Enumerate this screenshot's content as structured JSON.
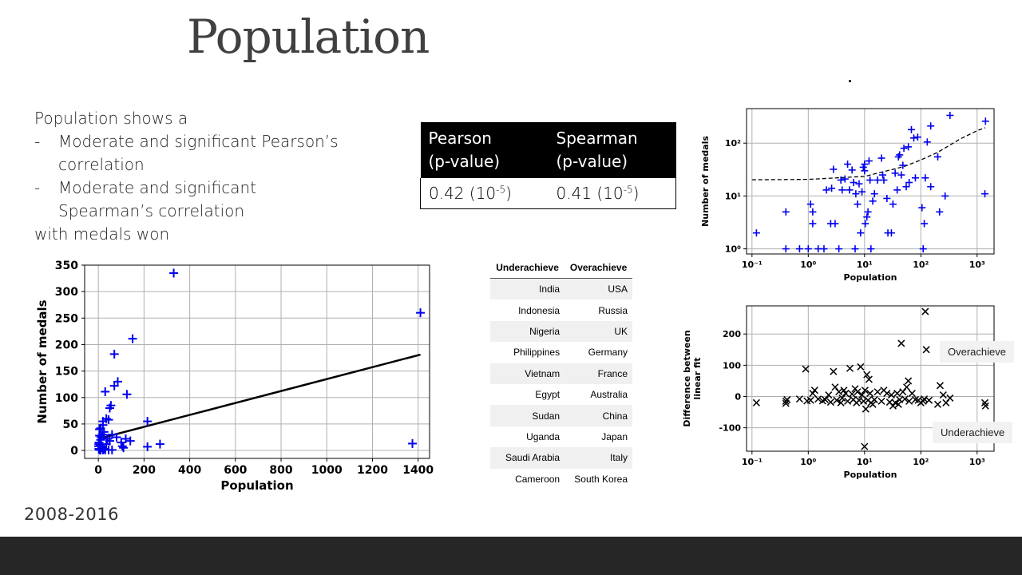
{
  "title": "Population",
  "bullets": {
    "intro": "Population shows a",
    "items": [
      {
        "line1": "Moderate and significant Pearson’s",
        "line2": "correlation"
      },
      {
        "line1": "Moderate and significant",
        "line2": "Spearman’s correlation"
      }
    ],
    "outro": "with medals won",
    "dash": "-"
  },
  "stats_table": {
    "headers": [
      [
        "Pearson",
        "(p-value)"
      ],
      [
        "Spearman",
        "(p-value)"
      ]
    ],
    "values": [
      "0.42 (10",
      "0.41 (10"
    ],
    "exponent": "-5",
    "close": ")"
  },
  "achieve_table": {
    "headers": [
      "Underachieve",
      "Overachieve"
    ],
    "rows": [
      [
        "India",
        "USA"
      ],
      [
        "Indonesia",
        "Russia"
      ],
      [
        "Nigeria",
        "UK"
      ],
      [
        "Philippines",
        "Germany"
      ],
      [
        "Vietnam",
        "France"
      ],
      [
        "Egypt",
        "Australia"
      ],
      [
        "Sudan",
        "China"
      ],
      [
        "Uganda",
        "Japan"
      ],
      [
        "Saudi Arabia",
        "Italy"
      ],
      [
        "Cameroon",
        "South Korea"
      ]
    ]
  },
  "tags": {
    "over": "Overachieve",
    "under": "Underachieve"
  },
  "year_range": "2008-2016",
  "colors": {
    "marker": "#0000ee",
    "title": "#404040",
    "footer": "#262626"
  },
  "chart_data": [
    {
      "type": "scatter",
      "xlabel": "Population",
      "ylabel": "Number of medals",
      "xlim": [
        -60,
        1450
      ],
      "ylim": [
        -15,
        350
      ],
      "xticks": [
        0,
        200,
        400,
        600,
        800,
        1000,
        1200,
        1400
      ],
      "yticks": [
        0,
        50,
        100,
        150,
        200,
        250,
        300,
        350
      ],
      "grid": true,
      "marker": "+",
      "points": [
        [
          330,
          335
        ],
        [
          1410,
          260
        ],
        [
          150,
          211
        ],
        [
          70,
          182
        ],
        [
          1375,
          13
        ],
        [
          270,
          12
        ],
        [
          215,
          55
        ],
        [
          215,
          7
        ],
        [
          85,
          130
        ],
        [
          70,
          122
        ],
        [
          30,
          111
        ],
        [
          125,
          106
        ],
        [
          55,
          85
        ],
        [
          50,
          80
        ],
        [
          35,
          60
        ],
        [
          45,
          58
        ],
        [
          20,
          55
        ],
        [
          20,
          48
        ],
        [
          10,
          42
        ],
        [
          5,
          40
        ],
        [
          25,
          35
        ],
        [
          60,
          30
        ],
        [
          80,
          25
        ],
        [
          120,
          22
        ],
        [
          140,
          18
        ],
        [
          100,
          15
        ],
        [
          105,
          8
        ],
        [
          110,
          5
        ],
        [
          5,
          28
        ],
        [
          10,
          20
        ],
        [
          3,
          15
        ],
        [
          8,
          10
        ],
        [
          12,
          25
        ],
        [
          18,
          30
        ],
        [
          40,
          22
        ],
        [
          15,
          5
        ],
        [
          2,
          3
        ],
        [
          25,
          3
        ],
        [
          35,
          12
        ],
        [
          50,
          18
        ],
        [
          5,
          1
        ],
        [
          10,
          1
        ],
        [
          20,
          1
        ],
        [
          30,
          1
        ],
        [
          45,
          1
        ],
        [
          60,
          1
        ],
        [
          1,
          8
        ],
        [
          2,
          12
        ]
      ],
      "fit_line": {
        "x": [
          0,
          1410
        ],
        "y": [
          22,
          181
        ]
      }
    },
    {
      "type": "scatter",
      "xlabel": "Population",
      "ylabel": "Number of medals",
      "xscale": "log",
      "yscale": "log",
      "xlim": [
        0.08,
        2000
      ],
      "ylim": [
        0.8,
        450
      ],
      "xticks": [
        "10⁻¹",
        "10⁰",
        "10¹",
        "10²",
        "10³"
      ],
      "yticks": [
        "10⁰",
        "10¹",
        "10²"
      ],
      "grid": true,
      "marker": "+",
      "points": [
        [
          0.12,
          2
        ],
        [
          0.4,
          1
        ],
        [
          0.4,
          5
        ],
        [
          0.7,
          1
        ],
        [
          1,
          1
        ],
        [
          1.1,
          7
        ],
        [
          1.2,
          5
        ],
        [
          1.2,
          3
        ],
        [
          1.5,
          1
        ],
        [
          1.9,
          1
        ],
        [
          2.1,
          13
        ],
        [
          2.5,
          3
        ],
        [
          2.6,
          14
        ],
        [
          2.8,
          32
        ],
        [
          3,
          3
        ],
        [
          3.5,
          1
        ],
        [
          3.8,
          20
        ],
        [
          4,
          13
        ],
        [
          4.5,
          21
        ],
        [
          5,
          40
        ],
        [
          5.4,
          13
        ],
        [
          6,
          31
        ],
        [
          6.4,
          18
        ],
        [
          6.8,
          1
        ],
        [
          7,
          11
        ],
        [
          7.5,
          7
        ],
        [
          8,
          17
        ],
        [
          8.5,
          2
        ],
        [
          9,
          12
        ],
        [
          9.5,
          35
        ],
        [
          10,
          40
        ],
        [
          10,
          30
        ],
        [
          10.3,
          3
        ],
        [
          11,
          4
        ],
        [
          11.5,
          5
        ],
        [
          12,
          46
        ],
        [
          12.5,
          20
        ],
        [
          13,
          1
        ],
        [
          14,
          8
        ],
        [
          15,
          11
        ],
        [
          17,
          20
        ],
        [
          20,
          52
        ],
        [
          21,
          25
        ],
        [
          22,
          20
        ],
        [
          25,
          9
        ],
        [
          26,
          2
        ],
        [
          30,
          2
        ],
        [
          32,
          7
        ],
        [
          35,
          27
        ],
        [
          38,
          13
        ],
        [
          40,
          55
        ],
        [
          42,
          60
        ],
        [
          45,
          25
        ],
        [
          48,
          38
        ],
        [
          50,
          80
        ],
        [
          55,
          15
        ],
        [
          60,
          85
        ],
        [
          62,
          18
        ],
        [
          68,
          180
        ],
        [
          75,
          125
        ],
        [
          80,
          22
        ],
        [
          88,
          130
        ],
        [
          105,
          6
        ],
        [
          110,
          1
        ],
        [
          115,
          3
        ],
        [
          120,
          22
        ],
        [
          130,
          105
        ],
        [
          150,
          211
        ],
        [
          150,
          15
        ],
        [
          200,
          55
        ],
        [
          215,
          5
        ],
        [
          270,
          10
        ],
        [
          330,
          335
        ],
        [
          1375,
          11
        ],
        [
          1410,
          260
        ]
      ],
      "fit_curve": {
        "x": [
          0.1,
          1,
          10,
          50,
          100,
          200,
          500,
          1000,
          1400
        ],
        "y": [
          20.3,
          20.6,
          23.5,
          36,
          48,
          67,
          120,
          172,
          196
        ]
      }
    },
    {
      "type": "scatter",
      "xlabel": "Population",
      "ylabel": "Difference between linear fit",
      "xscale": "log",
      "xlim": [
        0.08,
        2000
      ],
      "ylim": [
        -175,
        290
      ],
      "xticks": [
        "10⁻¹",
        "10⁰",
        "10¹",
        "10²",
        "10³"
      ],
      "yticks": [
        200,
        100,
        0,
        -100
      ],
      "grid": true,
      "marker": "x",
      "points": [
        [
          0.12,
          -20
        ],
        [
          0.4,
          -15
        ],
        [
          0.4,
          -22
        ],
        [
          0.42,
          -10
        ],
        [
          0.7,
          -8
        ],
        [
          0.9,
          88
        ],
        [
          0.95,
          -14
        ],
        [
          1.1,
          -12
        ],
        [
          1.2,
          10
        ],
        [
          1.3,
          20
        ],
        [
          1.5,
          -8
        ],
        [
          1.8,
          -14
        ],
        [
          2,
          -10
        ],
        [
          2.3,
          5
        ],
        [
          2.5,
          -18
        ],
        [
          2.8,
          80
        ],
        [
          3,
          30
        ],
        [
          3.2,
          -12
        ],
        [
          3.5,
          15
        ],
        [
          3.8,
          -20
        ],
        [
          4,
          -5
        ],
        [
          4.3,
          20
        ],
        [
          4.6,
          10
        ],
        [
          5,
          -15
        ],
        [
          5.5,
          90
        ],
        [
          6,
          8
        ],
        [
          6.3,
          -10
        ],
        [
          6.8,
          25
        ],
        [
          7.2,
          -20
        ],
        [
          7.5,
          15
        ],
        [
          8,
          -12
        ],
        [
          8.5,
          95
        ],
        [
          9,
          5
        ],
        [
          9.6,
          -15
        ],
        [
          10,
          -160
        ],
        [
          10.2,
          20
        ],
        [
          10.5,
          -40
        ],
        [
          11,
          70
        ],
        [
          11.5,
          -12
        ],
        [
          12,
          55
        ],
        [
          12.5,
          10
        ],
        [
          13,
          -20
        ],
        [
          14,
          -25
        ],
        [
          15,
          -10
        ],
        [
          17,
          15
        ],
        [
          20,
          -15
        ],
        [
          22,
          20
        ],
        [
          25,
          10
        ],
        [
          28,
          -18
        ],
        [
          30,
          5
        ],
        [
          32,
          -30
        ],
        [
          35,
          -20
        ],
        [
          38,
          10
        ],
        [
          40,
          -25
        ],
        [
          42,
          -10
        ],
        [
          45,
          170
        ],
        [
          48,
          15
        ],
        [
          52,
          -8
        ],
        [
          56,
          30
        ],
        [
          60,
          50
        ],
        [
          62,
          -15
        ],
        [
          70,
          10
        ],
        [
          80,
          -10
        ],
        [
          90,
          -12
        ],
        [
          100,
          -20
        ],
        [
          110,
          -15
        ],
        [
          115,
          -8
        ],
        [
          120,
          272
        ],
        [
          125,
          150
        ],
        [
          140,
          -12
        ],
        [
          200,
          -25
        ],
        [
          220,
          35
        ],
        [
          250,
          5
        ],
        [
          280,
          -20
        ],
        [
          330,
          -5
        ],
        [
          1375,
          -20
        ],
        [
          1410,
          -30
        ]
      ]
    }
  ]
}
